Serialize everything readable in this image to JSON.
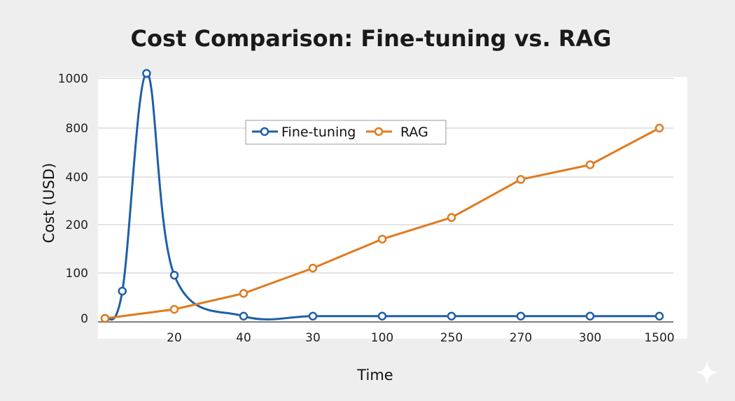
{
  "chart_data": {
    "type": "line",
    "title": "Cost Comparison: Fine-tuning vs. RAG",
    "xlabel": "Time",
    "ylabel": "Cost (USD)",
    "categories": [
      "20",
      "40",
      "30",
      "100",
      "250",
      "270",
      "300",
      "1500"
    ],
    "yticks": [
      "0",
      "100",
      "200",
      "400",
      "800",
      "1000"
    ],
    "grid": true,
    "legend_position": "top-center",
    "series": [
      {
        "name": "Fine-tuning",
        "color": "#1f5fa8",
        "points": [
          {
            "pos": 0.0,
            "value": 0
          },
          {
            "pos": 0.25,
            "value": 60
          },
          {
            "pos": 0.6,
            "value": 1020
          },
          {
            "pos": 1.0,
            "value": 95
          },
          {
            "pos": 2.0,
            "value": 5
          },
          {
            "pos": 3.0,
            "value": 5
          },
          {
            "pos": 4.0,
            "value": 5
          },
          {
            "pos": 5.0,
            "value": 5
          },
          {
            "pos": 6.0,
            "value": 5
          },
          {
            "pos": 7.0,
            "value": 5
          },
          {
            "pos": 8.0,
            "value": 5
          }
        ]
      },
      {
        "name": "RAG",
        "color": "#e07a1f",
        "points": [
          {
            "pos": 0.0,
            "value": 0
          },
          {
            "pos": 1.0,
            "value": 20
          },
          {
            "pos": 2.0,
            "value": 55
          },
          {
            "pos": 3.0,
            "value": 110
          },
          {
            "pos": 4.0,
            "value": 170
          },
          {
            "pos": 5.0,
            "value": 230
          },
          {
            "pos": 6.0,
            "value": 390
          },
          {
            "pos": 7.0,
            "value": 500
          },
          {
            "pos": 8.0,
            "value": 800
          }
        ]
      }
    ]
  },
  "colors": {
    "fine_tuning": "#1f5fa8",
    "rag": "#e07a1f",
    "background": "#eeeeee",
    "plot_background": "#ffffff"
  },
  "decorations": {
    "corner_icon": "sparkle-icon"
  }
}
